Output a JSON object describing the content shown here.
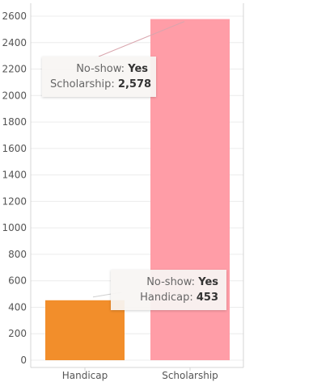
{
  "chart_data": {
    "type": "bar",
    "categories": [
      "Handicap",
      "Scholarship"
    ],
    "values": [
      453,
      2578
    ],
    "colors": [
      "#f28e2b",
      "#ff9da7"
    ],
    "ylim": [
      0,
      2600
    ],
    "yticks": [
      0,
      200,
      400,
      600,
      800,
      1000,
      1200,
      1400,
      1600,
      1800,
      2000,
      2200,
      2400,
      2600
    ],
    "grid": true,
    "tooltips": [
      {
        "category": "Scholarship",
        "line1_label": "No-show:",
        "line1_value": "Yes",
        "line2_label": "Scholarship:",
        "line2_value": "2,578"
      },
      {
        "category": "Handicap",
        "line1_label": "No-show:",
        "line1_value": "Yes",
        "line2_label": "Handicap:",
        "line2_value": "453"
      }
    ]
  }
}
